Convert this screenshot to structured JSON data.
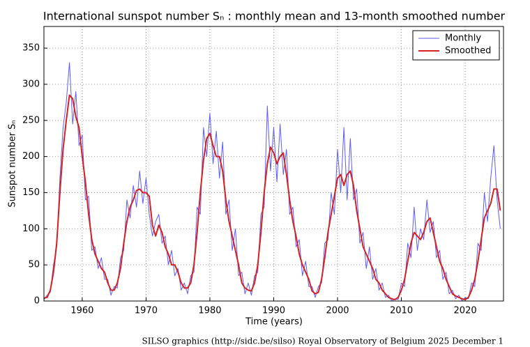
{
  "chart_data": {
    "type": "line",
    "title": "International sunspot number Sₙ : monthly mean and 13-month smoothed number",
    "x_label": "Time (years)",
    "y_label": "Sunspot number Sₙ",
    "footer": "SILSO graphics (http://sidc.be/silso)  Royal Observatory of Belgium  2025 December 1",
    "xlim": [
      1954,
      2026
    ],
    "ylim": [
      0,
      380
    ],
    "xticks": [
      1960,
      1970,
      1980,
      1990,
      2000,
      2010,
      2020
    ],
    "yticks": [
      0,
      50,
      100,
      150,
      200,
      250,
      300,
      350
    ],
    "grid": true,
    "legend": "upper right",
    "x": [
      1954,
      1954.5,
      1955,
      1955.5,
      1956,
      1956.5,
      1957,
      1957.5,
      1958,
      1958.5,
      1959,
      1959.5,
      1960,
      1960.5,
      1961,
      1961.5,
      1962,
      1962.5,
      1963,
      1963.5,
      1964,
      1964.5,
      1965,
      1965.5,
      1966,
      1966.5,
      1967,
      1967.5,
      1968,
      1968.5,
      1969,
      1969.5,
      1970,
      1970.5,
      1971,
      1971.5,
      1972,
      1972.5,
      1973,
      1973.5,
      1974,
      1974.5,
      1975,
      1975.5,
      1976,
      1976.5,
      1977,
      1977.5,
      1978,
      1978.5,
      1979,
      1979.5,
      1980,
      1980.5,
      1981,
      1981.5,
      1982,
      1982.5,
      1983,
      1983.5,
      1984,
      1984.5,
      1985,
      1985.5,
      1986,
      1986.5,
      1987,
      1987.5,
      1988,
      1988.5,
      1989,
      1989.5,
      1990,
      1990.5,
      1991,
      1991.5,
      1992,
      1992.5,
      1993,
      1993.5,
      1994,
      1994.5,
      1995,
      1995.5,
      1996,
      1996.5,
      1997,
      1997.5,
      1998,
      1998.5,
      1999,
      1999.5,
      2000,
      2000.5,
      2001,
      2001.5,
      2002,
      2002.5,
      2003,
      2003.5,
      2004,
      2004.5,
      2005,
      2005.5,
      2006,
      2006.5,
      2007,
      2007.5,
      2008,
      2008.5,
      2009,
      2009.5,
      2010,
      2010.5,
      2011,
      2011.5,
      2012,
      2012.5,
      2013,
      2013.5,
      2014,
      2014.5,
      2015,
      2015.5,
      2016,
      2016.5,
      2017,
      2017.5,
      2018,
      2018.5,
      2019,
      2019.5,
      2020,
      2020.5,
      2021,
      2021.5,
      2022,
      2022.5,
      2023,
      2023.5,
      2024,
      2024.5,
      2025,
      2025.5
    ],
    "series": [
      {
        "name": "Monthly",
        "color": "#5b5bff",
        "width": 1,
        "values": [
          2,
          8,
          12,
          50,
          75,
          170,
          240,
          275,
          330,
          245,
          290,
          215,
          230,
          140,
          145,
          70,
          75,
          45,
          60,
          30,
          30,
          8,
          20,
          18,
          60,
          70,
          140,
          115,
          160,
          130,
          180,
          135,
          170,
          120,
          90,
          110,
          120,
          80,
          90,
          50,
          70,
          35,
          45,
          15,
          25,
          10,
          35,
          40,
          130,
          120,
          240,
          200,
          260,
          190,
          235,
          170,
          220,
          120,
          140,
          70,
          100,
          35,
          40,
          10,
          25,
          8,
          35,
          40,
          120,
          130,
          270,
          180,
          240,
          165,
          245,
          175,
          210,
          120,
          130,
          75,
          85,
          35,
          55,
          20,
          20,
          5,
          20,
          25,
          80,
          85,
          150,
          120,
          210,
          150,
          240,
          140,
          225,
          140,
          155,
          80,
          95,
          45,
          75,
          30,
          45,
          15,
          25,
          5,
          8,
          0,
          3,
          2,
          25,
          20,
          80,
          60,
          130,
          70,
          100,
          85,
          140,
          95,
          110,
          60,
          70,
          30,
          40,
          10,
          15,
          3,
          8,
          0,
          5,
          3,
          25,
          20,
          80,
          70,
          150,
          110,
          170,
          215,
          140,
          100
        ]
      },
      {
        "name": "Smoothed",
        "color": "#d62020",
        "width": 2,
        "values": [
          4,
          5,
          15,
          40,
          80,
          150,
          210,
          250,
          285,
          280,
          255,
          240,
          200,
          165,
          120,
          85,
          65,
          55,
          45,
          40,
          25,
          15,
          15,
          25,
          45,
          80,
          110,
          130,
          140,
          153,
          155,
          150,
          150,
          145,
          105,
          90,
          105,
          95,
          75,
          65,
          50,
          50,
          40,
          25,
          18,
          18,
          25,
          50,
          95,
          150,
          195,
          225,
          232,
          215,
          200,
          200,
          180,
          140,
          110,
          90,
          70,
          50,
          25,
          18,
          15,
          14,
          25,
          50,
          95,
          150,
          190,
          213,
          205,
          190,
          200,
          205,
          175,
          140,
          110,
          90,
          65,
          50,
          40,
          30,
          14,
          10,
          12,
          30,
          60,
          95,
          120,
          145,
          170,
          175,
          160,
          175,
          180,
          160,
          125,
          100,
          75,
          65,
          55,
          45,
          30,
          25,
          15,
          10,
          5,
          3,
          2,
          5,
          15,
          30,
          55,
          80,
          95,
          90,
          85,
          95,
          110,
          115,
          95,
          75,
          55,
          45,
          30,
          20,
          10,
          7,
          5,
          3,
          2,
          5,
          15,
          30,
          55,
          85,
          115,
          125,
          135,
          155,
          155,
          125
        ]
      }
    ]
  }
}
